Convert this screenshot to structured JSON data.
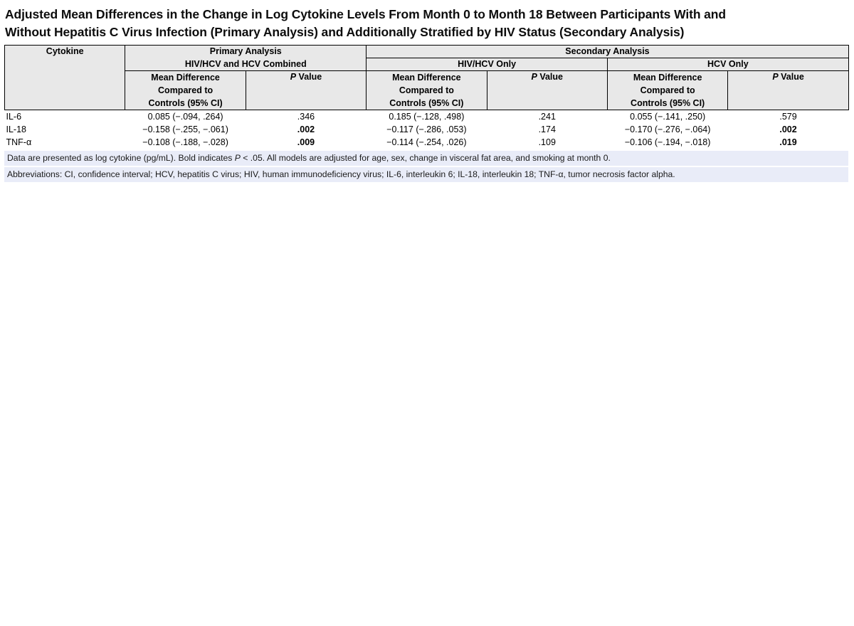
{
  "title": {
    "line1": "Adjusted Mean Differences in the Change in Log Cytokine Levels From Month 0 to Month 18 Between Participants With and",
    "line2": "Without Hepatitis C Virus Infection (Primary Analysis) and Additionally Stratified by HIV Status (Secondary Analysis)"
  },
  "table": {
    "corner_header": "Cytokine",
    "primary_group": {
      "line1": "Primary Analysis",
      "line2": "HIV/HCV and HCV Combined"
    },
    "secondary_group": {
      "label": "Secondary Analysis",
      "subgroups": [
        {
          "label": "HIV/HCV Only"
        },
        {
          "label": "HCV Only"
        }
      ]
    },
    "mean_diff_header": {
      "line1": "Mean Difference",
      "line2": "Compared to",
      "line3": "Controls (95% CI)"
    },
    "p_value_header": {
      "p": "P",
      "rest": " Value"
    },
    "rows": [
      {
        "cytokine": "IL-6",
        "primary_md": "0.085 (−.094, .264)",
        "primary_p": ".346",
        "primary_p_bold": false,
        "hivhcv_md": "0.185 (−.128, .498)",
        "hivhcv_p": ".241",
        "hivhcv_p_bold": false,
        "hcv_md": "0.055 (−.141, .250)",
        "hcv_p": ".579",
        "hcv_p_bold": false
      },
      {
        "cytokine": "IL-18",
        "primary_md": "−0.158 (−.255, −.061)",
        "primary_p": ".002",
        "primary_p_bold": true,
        "hivhcv_md": "−0.117 (−.286, .053)",
        "hivhcv_p": ".174",
        "hivhcv_p_bold": false,
        "hcv_md": "−0.170 (−.276, −.064)",
        "hcv_p": ".002",
        "hcv_p_bold": true
      },
      {
        "cytokine": "TNF-α",
        "primary_md": "−0.108 (−.188, −.028)",
        "primary_p": ".009",
        "primary_p_bold": true,
        "hivhcv_md": "−0.114 (−.254, .026)",
        "hivhcv_p": ".109",
        "hivhcv_p_bold": false,
        "hcv_md": "−0.106 (−.194, −.018)",
        "hcv_p": ".019",
        "hcv_p_bold": true
      }
    ]
  },
  "footnotes": {
    "line1_parts": [
      "Data are presented as log cytokine (pg/mL). Bold indicates ",
      "P",
      " < .05. All models are adjusted for age, sex, change in visceral fat area, and smoking at month 0."
    ],
    "line2": "Abbreviations: CI, confidence interval; HCV, hepatitis C virus; HIV, human immunodeficiency virus; IL-6, interleukin 6; IL-18, interleukin 18; TNF-α, tumor necrosis factor alpha."
  },
  "colors": {
    "header_bg": "#e8e8e8",
    "footnote_bg": "#e9ecf8",
    "border": "#000000"
  }
}
